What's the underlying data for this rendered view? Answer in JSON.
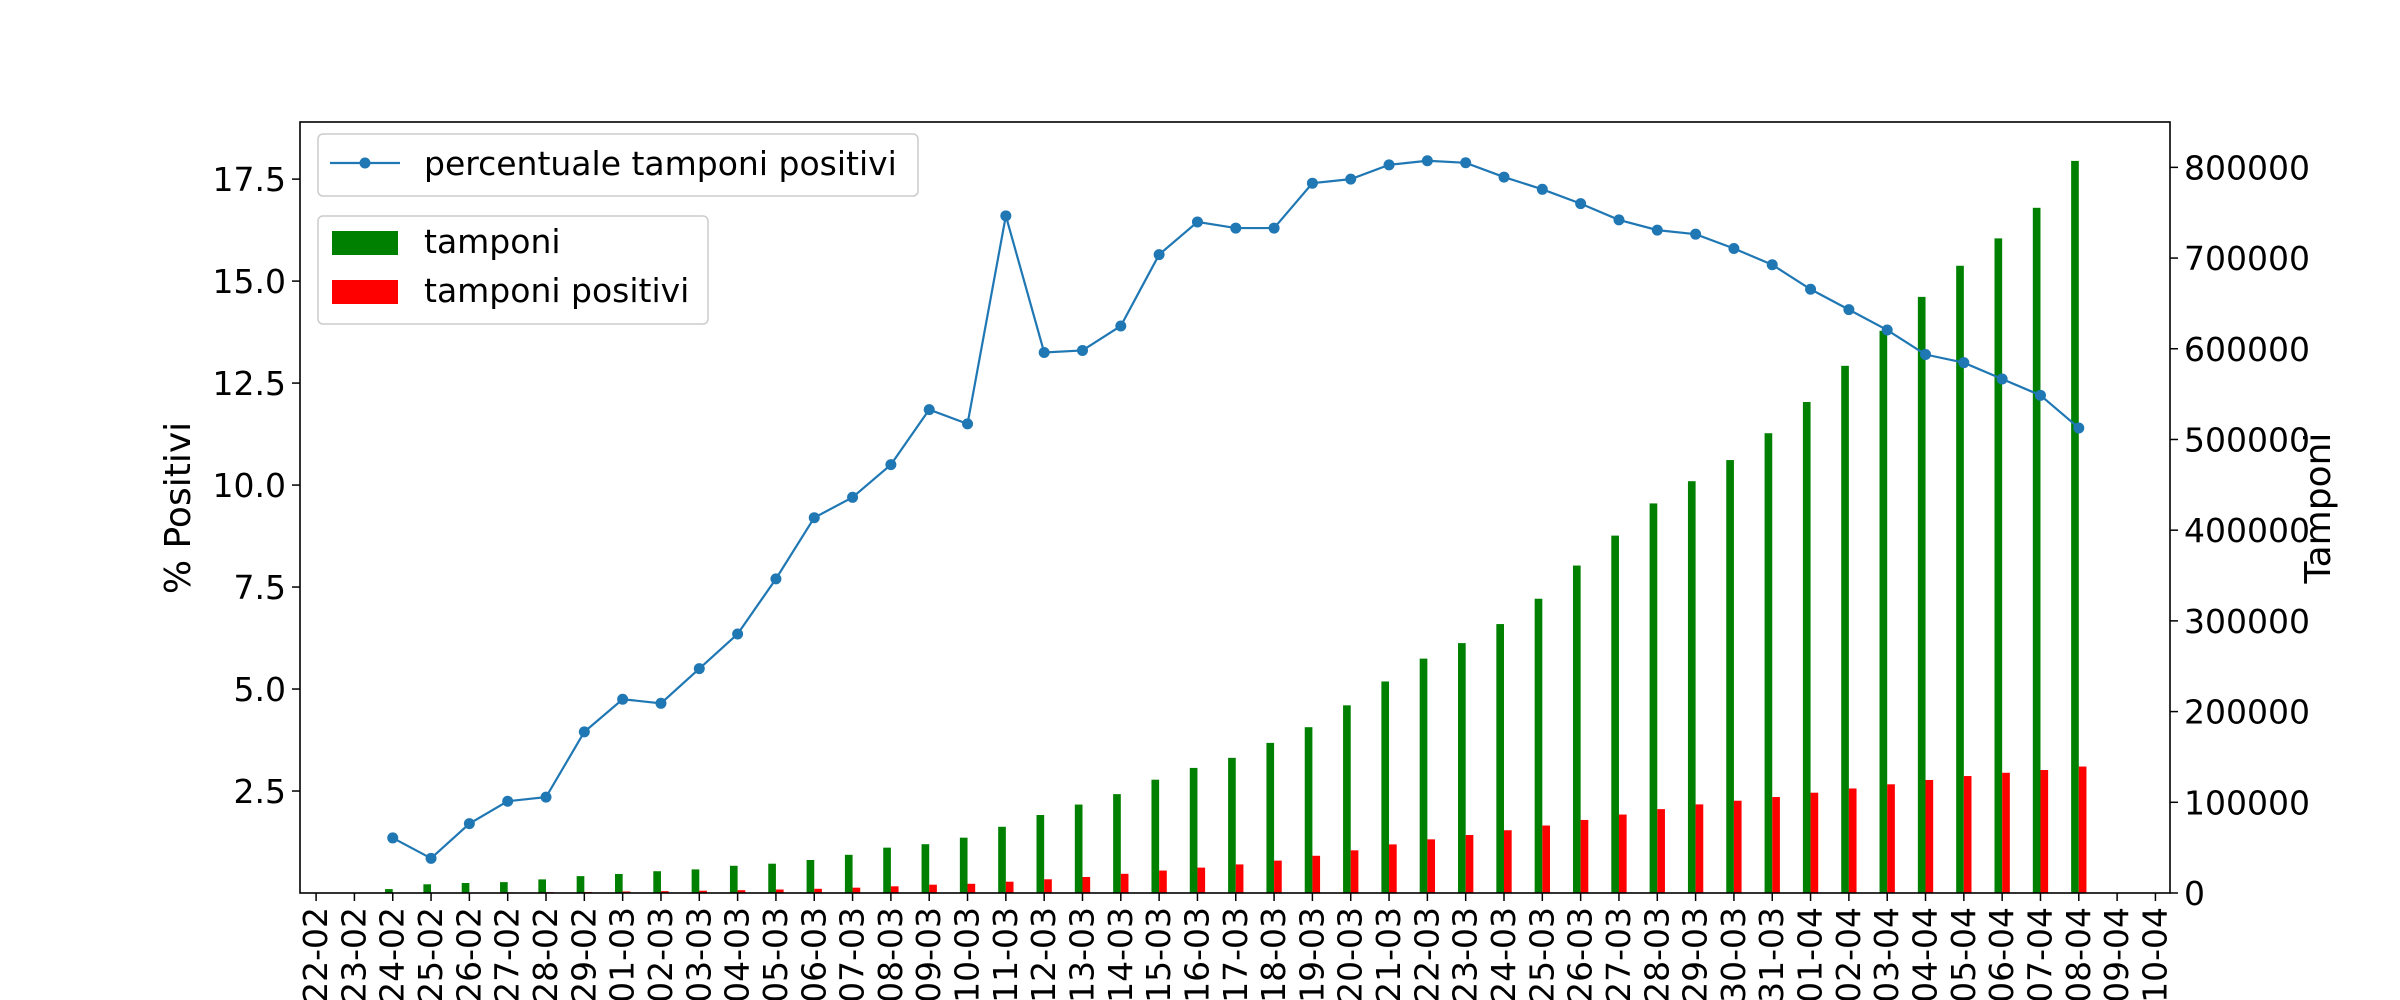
{
  "chart_data": {
    "type": "bar+line",
    "categories": [
      "22-02",
      "23-02",
      "24-02",
      "25-02",
      "26-02",
      "27-02",
      "28-02",
      "29-02",
      "01-03",
      "02-03",
      "03-03",
      "04-03",
      "05-03",
      "06-03",
      "07-03",
      "08-03",
      "09-03",
      "10-03",
      "11-03",
      "12-03",
      "13-03",
      "14-03",
      "15-03",
      "16-03",
      "17-03",
      "18-03",
      "19-03",
      "20-03",
      "21-03",
      "22-03",
      "23-03",
      "24-03",
      "25-03",
      "26-03",
      "27-03",
      "28-03",
      "29-03",
      "30-03",
      "31-03",
      "01-04",
      "02-04",
      "03-04",
      "04-04",
      "05-04",
      "06-04",
      "07-04",
      "08-04",
      "09-04",
      "10-04"
    ],
    "left_axis": {
      "label": "% Positivi",
      "ylim": [
        0,
        18.9
      ],
      "ticks": [
        2.5,
        5.0,
        7.5,
        10.0,
        12.5,
        15.0,
        17.5
      ],
      "tick_labels": [
        "2.5",
        "5.0",
        "7.5",
        "10.0",
        "12.5",
        "15.0",
        "17.5"
      ]
    },
    "right_axis": {
      "label": "Tamponi",
      "ylim": [
        0,
        850000
      ],
      "ticks": [
        0,
        100000,
        200000,
        300000,
        400000,
        500000,
        600000,
        700000,
        800000
      ],
      "tick_labels": [
        "0",
        "100000",
        "200000",
        "300000",
        "400000",
        "500000",
        "600000",
        "700000",
        "800000"
      ]
    },
    "line_series": {
      "name": "percentuale tamponi positivi",
      "axis": "left",
      "color": "#1f77b4",
      "values": [
        null,
        null,
        1.35,
        0.85,
        1.7,
        2.25,
        2.35,
        3.95,
        4.75,
        4.65,
        5.5,
        6.35,
        7.7,
        9.2,
        9.7,
        10.5,
        11.85,
        11.5,
        16.6,
        13.25,
        13.3,
        13.9,
        15.65,
        16.45,
        16.3,
        16.3,
        17.4,
        17.5,
        17.85,
        17.95,
        17.9,
        17.55,
        17.25,
        16.9,
        16.5,
        16.25,
        16.15,
        15.8,
        15.4,
        14.8,
        14.3,
        13.8,
        13.2,
        13.0,
        12.6,
        12.2,
        11.4,
        null,
        null
      ]
    },
    "bar_series": [
      {
        "name": "tamponi",
        "axis": "right",
        "color": "#008000",
        "values": [
          null,
          null,
          4300,
          9600,
          11000,
          12000,
          15000,
          18600,
          21000,
          24000,
          26000,
          30000,
          32300,
          36400,
          42100,
          50000,
          53800,
          61000,
          73000,
          86000,
          97500,
          109000,
          124900,
          137900,
          149000,
          165500,
          182800,
          206900,
          233200,
          258400,
          275500,
          296500,
          324400,
          361000,
          394000,
          429500,
          454000,
          477300,
          506900,
          541300,
          581200,
          619800,
          657200,
          691500,
          721700,
          755400,
          807100,
          null,
          null
        ]
      },
      {
        "name": "tamponi positivi",
        "axis": "right",
        "color": "#ff0000",
        "values": [
          null,
          null,
          230,
          320,
          400,
          650,
          890,
          1130,
          1690,
          2040,
          2500,
          3100,
          3860,
          4640,
          5880,
          7380,
          9170,
          10150,
          12460,
          15110,
          17660,
          21160,
          24750,
          27980,
          31510,
          35710,
          41030,
          47020,
          53580,
          59140,
          63930,
          69180,
          74380,
          80540,
          86500,
          92470,
          97690,
          101740,
          105790,
          110570,
          115240,
          119830,
          124630,
          128950,
          132550,
          135590,
          139420,
          null,
          null
        ]
      }
    ],
    "legend": [
      {
        "label": "percentuale tamponi positivi"
      },
      {
        "label": "tamponi"
      },
      {
        "label": "tamponi positivi"
      }
    ],
    "legend_placement": "top-left",
    "grid": false
  }
}
